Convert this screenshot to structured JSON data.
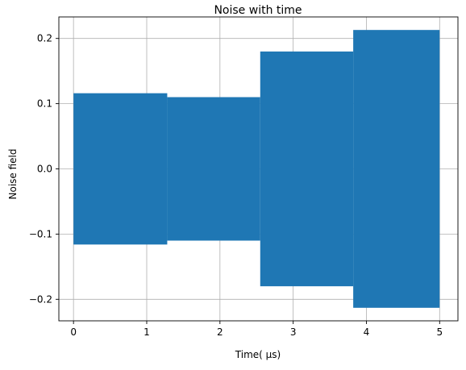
{
  "chart_data": {
    "type": "area",
    "title": "Noise with time",
    "xlabel": "Time( μs)",
    "ylabel": "Noise field",
    "xlim": [
      -0.2,
      5.25
    ],
    "ylim": [
      -0.233,
      0.233
    ],
    "x_ticks": [
      0,
      1,
      2,
      3,
      4,
      5
    ],
    "x_tick_labels": [
      "0",
      "1",
      "2",
      "3",
      "4",
      "5"
    ],
    "y_ticks": [
      -0.2,
      -0.1,
      0.0,
      0.1,
      0.2
    ],
    "y_tick_labels": [
      "−0.2",
      "−0.1",
      "0.0",
      "0.1",
      "0.2"
    ],
    "grid": true,
    "series": [
      {
        "color": "#1f77b4",
        "segments": [
          {
            "x_start": 0.0,
            "x_end": 1.28,
            "amplitude": 0.116
          },
          {
            "x_start": 1.28,
            "x_end": 2.55,
            "amplitude": 0.11
          },
          {
            "x_start": 2.55,
            "x_end": 3.82,
            "amplitude": 0.18
          },
          {
            "x_start": 3.82,
            "x_end": 5.0,
            "amplitude": 0.213
          }
        ]
      }
    ]
  }
}
